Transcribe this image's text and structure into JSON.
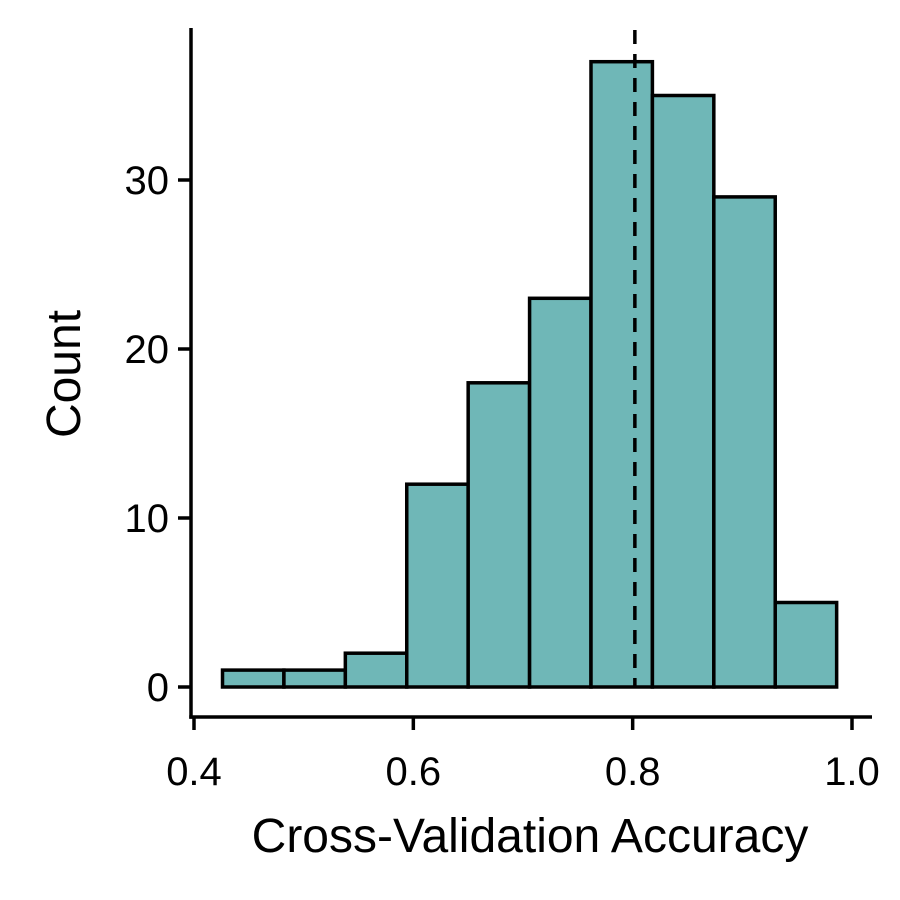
{
  "chart_data": {
    "type": "bar",
    "subtype": "histogram",
    "xlabel": "Cross-Validation Accuracy",
    "ylabel": "Count",
    "xlim": [
      0.4,
      1.02
    ],
    "ylim": [
      0,
      38
    ],
    "xticks": [
      "0.4",
      "0.6",
      "0.8",
      "1.0"
    ],
    "yticks": [
      "0",
      "10",
      "20",
      "30"
    ],
    "bins": [
      {
        "x0": 0.426,
        "x1": 0.482,
        "count": 1
      },
      {
        "x0": 0.482,
        "x1": 0.538,
        "count": 1
      },
      {
        "x0": 0.538,
        "x1": 0.594,
        "count": 2
      },
      {
        "x0": 0.594,
        "x1": 0.65,
        "count": 12
      },
      {
        "x0": 0.65,
        "x1": 0.706,
        "count": 18
      },
      {
        "x0": 0.706,
        "x1": 0.762,
        "count": 23
      },
      {
        "x0": 0.762,
        "x1": 0.818,
        "count": 37
      },
      {
        "x0": 0.818,
        "x1": 0.874,
        "count": 35
      },
      {
        "x0": 0.874,
        "x1": 0.93,
        "count": 29
      },
      {
        "x0": 0.93,
        "x1": 0.986,
        "count": 5
      }
    ],
    "reference_line": {
      "x": 0.802,
      "style": "dashed"
    },
    "bar_color": "#6fb7b7",
    "edge_color": "#000000",
    "grid": false
  }
}
